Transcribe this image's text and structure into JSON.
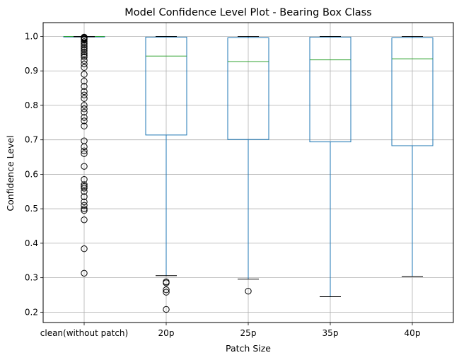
{
  "chart_data": {
    "type": "box",
    "title": "Model Confidence Level Plot - Bearing Box Class",
    "xlabel": "Patch Size",
    "ylabel": "Confidence Level",
    "categories": [
      "clean(without patch)",
      "20p",
      "25p",
      "35p",
      "40p"
    ],
    "ylim": [
      0.17,
      1.04
    ],
    "yticks": [
      0.2,
      0.3,
      0.4,
      0.5,
      0.6,
      0.7,
      0.8,
      0.9,
      1.0
    ],
    "ytick_labels": [
      "0.2",
      "0.3",
      "0.4",
      "0.5",
      "0.6",
      "0.7",
      "0.8",
      "0.9",
      "1.0"
    ],
    "grid": true,
    "boxes": [
      {
        "category": "clean(without patch)",
        "whisker_low": 0.999,
        "q1": 0.9995,
        "median": 1.0,
        "q3": 1.0,
        "whisker_high": 1.0,
        "outliers": [
          0.313,
          0.384,
          0.468,
          0.495,
          0.5,
          0.51,
          0.52,
          0.535,
          0.55,
          0.56,
          0.565,
          0.57,
          0.585,
          0.623,
          0.66,
          0.668,
          0.68,
          0.697,
          0.74,
          0.755,
          0.765,
          0.78,
          0.79,
          0.8,
          0.82,
          0.83,
          0.84,
          0.855,
          0.87,
          0.89,
          0.91,
          0.92,
          0.93,
          0.94,
          0.945,
          0.95,
          0.955,
          0.96,
          0.965,
          0.97,
          0.975,
          0.98,
          0.985,
          0.99,
          0.993,
          0.995,
          0.997,
          0.998
        ]
      },
      {
        "category": "20p",
        "whisker_low": 0.306,
        "q1": 0.714,
        "median": 0.943,
        "q3": 0.998,
        "whisker_high": 1.0,
        "outliers": [
          0.288,
          0.285,
          0.265,
          0.258,
          0.208
        ]
      },
      {
        "category": "25p",
        "whisker_low": 0.296,
        "q1": 0.701,
        "median": 0.927,
        "q3": 0.996,
        "whisker_high": 1.0,
        "outliers": [
          0.261
        ]
      },
      {
        "category": "35p",
        "whisker_low": 0.245,
        "q1": 0.694,
        "median": 0.932,
        "q3": 0.998,
        "whisker_high": 1.0,
        "outliers": []
      },
      {
        "category": "40p",
        "whisker_low": 0.304,
        "q1": 0.683,
        "median": 0.935,
        "q3": 0.996,
        "whisker_high": 1.0,
        "outliers": []
      }
    ],
    "colors": {
      "box": "#1f77b4",
      "median": "#2ca02c",
      "whisker_cap": "#000000",
      "grid": "#b0b0b0",
      "axes": "#000000"
    }
  }
}
